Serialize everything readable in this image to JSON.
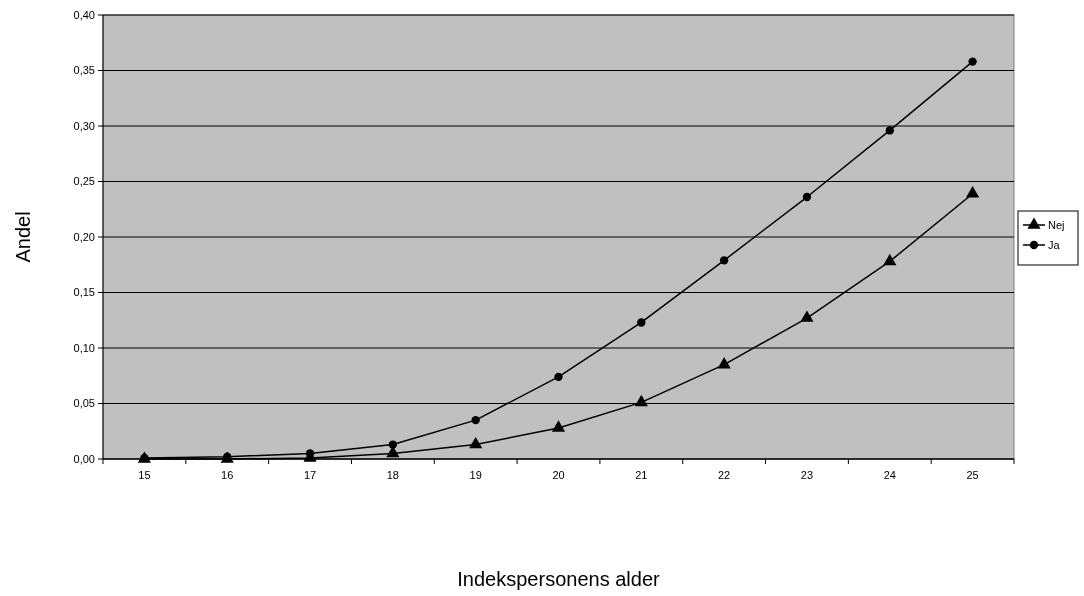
{
  "chart_data": {
    "type": "line",
    "xlabel": "Indekspersonens alder",
    "ylabel": "Andel",
    "categories": [
      "15",
      "16",
      "17",
      "18",
      "19",
      "20",
      "21",
      "22",
      "23",
      "24",
      "25"
    ],
    "series": [
      {
        "name": "Nej",
        "color": "#000000",
        "marker": "triangle",
        "values": [
          0,
          0,
          0.001,
          0.005,
          0.013,
          0.028,
          0.051,
          0.085,
          0.127,
          0.178,
          0.239
        ]
      },
      {
        "name": "Ja",
        "color": "#000000",
        "marker": "circle",
        "values": [
          0.001,
          0.002,
          0.005,
          0.013,
          0.035,
          0.074,
          0.123,
          0.179,
          0.236,
          0.296,
          0.358
        ]
      }
    ],
    "ylim": [
      0,
      0.4
    ],
    "yticks": [
      {
        "value": 0,
        "label": "0,00"
      },
      {
        "value": 0.05,
        "label": "0,05"
      },
      {
        "value": 0.1,
        "label": "0,10"
      },
      {
        "value": 0.15,
        "label": "0,15"
      },
      {
        "value": 0.2,
        "label": "0,20"
      },
      {
        "value": 0.25,
        "label": "0,25"
      },
      {
        "value": 0.3,
        "label": "0,30"
      },
      {
        "value": 0.35,
        "label": "0,35"
      },
      {
        "value": 0.4,
        "label": "0,40"
      }
    ],
    "grid": "y",
    "legend": "right",
    "line_style": "solid"
  }
}
